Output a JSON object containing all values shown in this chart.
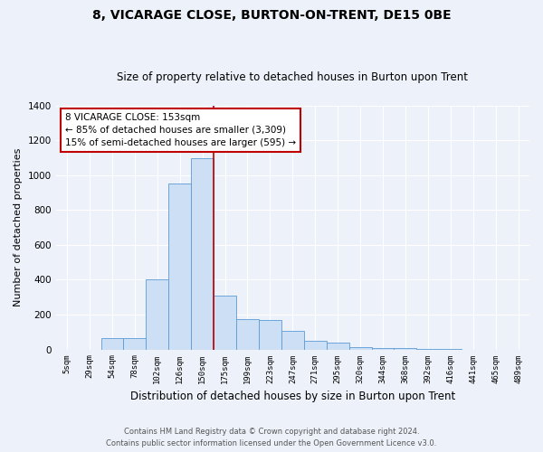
{
  "title": "8, VICARAGE CLOSE, BURTON-ON-TRENT, DE15 0BE",
  "subtitle": "Size of property relative to detached houses in Burton upon Trent",
  "xlabel": "Distribution of detached houses by size in Burton upon Trent",
  "ylabel": "Number of detached properties",
  "footer1": "Contains HM Land Registry data © Crown copyright and database right 2024.",
  "footer2": "Contains public sector information licensed under the Open Government Licence v3.0.",
  "categories": [
    "5sqm",
    "29sqm",
    "54sqm",
    "78sqm",
    "102sqm",
    "126sqm",
    "150sqm",
    "175sqm",
    "199sqm",
    "223sqm",
    "247sqm",
    "271sqm",
    "295sqm",
    "320sqm",
    "344sqm",
    "368sqm",
    "392sqm",
    "416sqm",
    "441sqm",
    "465sqm",
    "489sqm"
  ],
  "values": [
    0,
    0,
    65,
    65,
    400,
    950,
    1100,
    310,
    175,
    170,
    105,
    50,
    40,
    15,
    8,
    10,
    3,
    2,
    0,
    0,
    0
  ],
  "bar_color": "#ccdff5",
  "bar_edge_color": "#5b9bd5",
  "vline_color": "#c00000",
  "annotation_title": "8 VICARAGE CLOSE: 153sqm",
  "annotation_line1": "← 85% of detached houses are smaller (3,309)",
  "annotation_line2": "15% of semi-detached houses are larger (595) →",
  "annotation_box_color": "white",
  "annotation_box_edge": "#c00000",
  "ylim": [
    0,
    1400
  ],
  "yticks": [
    0,
    200,
    400,
    600,
    800,
    1000,
    1200,
    1400
  ],
  "bg_color": "#edf2fa",
  "grid_color": "white",
  "title_fontsize": 10,
  "subtitle_fontsize": 8.5,
  "xlabel_fontsize": 8.5,
  "ylabel_fontsize": 8
}
